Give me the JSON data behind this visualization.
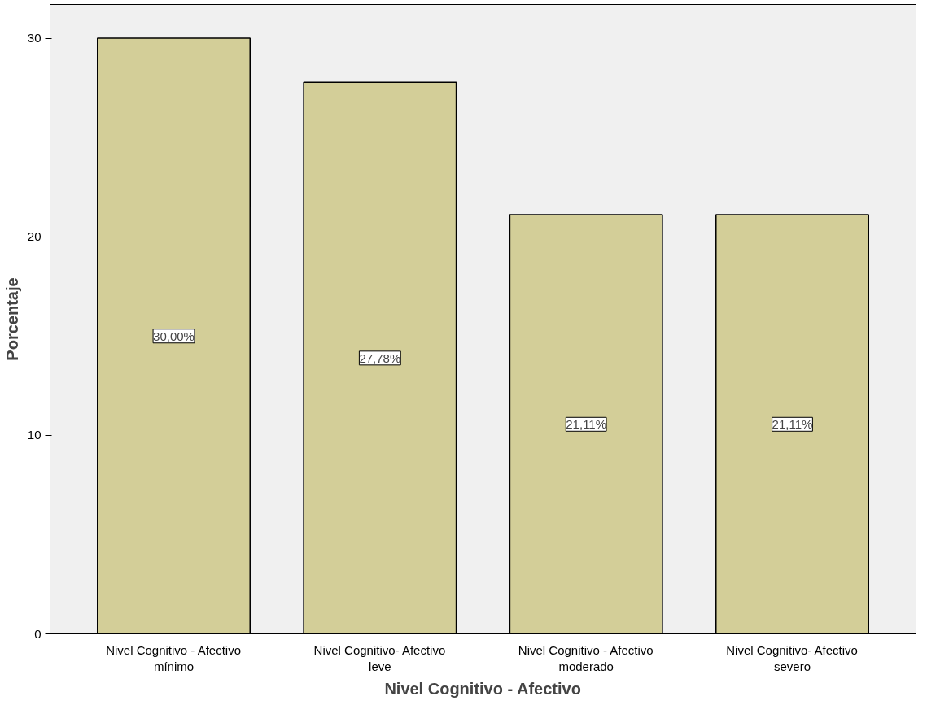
{
  "chart_data": {
    "type": "bar",
    "xlabel": "Nivel Cognitivo - Afectivo",
    "ylabel": "Porcentaje",
    "categories": [
      "Nivel Cognitivo - Afectivo\nmínimo",
      "Nivel Cognitivo- Afectivo\nleve",
      "Nivel Cognitivo - Afectivo\nmoderado",
      "Nivel Cognitivo- Afectivo\nsevero"
    ],
    "values": [
      30.0,
      27.78,
      21.11,
      21.11
    ],
    "value_labels": [
      "30,00%",
      "27,78%",
      "21,11%",
      "21,11%"
    ],
    "color": "#d3ce98",
    "ylim": [
      0,
      31.7
    ],
    "yticks": [
      0,
      10,
      20,
      30
    ],
    "grid": false
  }
}
